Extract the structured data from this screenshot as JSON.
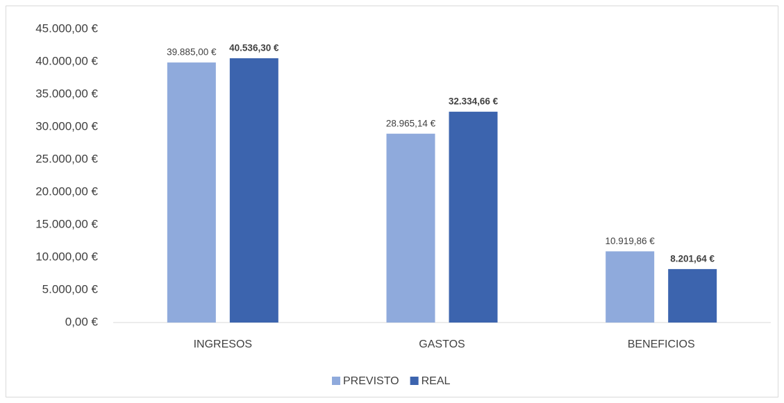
{
  "chart_data": {
    "type": "bar",
    "categories": [
      "INGRESOS",
      "GASTOS",
      "BENEFICIOS"
    ],
    "series": [
      {
        "name": "PREVISTO",
        "color": "#8faadc",
        "values": [
          39885,
          28965.14,
          10919.86
        ],
        "value_labels": [
          "39.885,00 €",
          "28.965,14 €",
          "10.919,86 €"
        ]
      },
      {
        "name": "REAL",
        "color": "#3c64ae",
        "values": [
          40536.3,
          32334.66,
          8201.64
        ],
        "value_labels": [
          "40.536,30 €",
          "32.334,66 €",
          "8.201,64 €"
        ]
      }
    ],
    "ylim": [
      0,
      45000
    ],
    "yticks": [
      {
        "value": 0,
        "label": "0,00 €"
      },
      {
        "value": 5000,
        "label": "5.000,00 €"
      },
      {
        "value": 10000,
        "label": "10.000,00 €"
      },
      {
        "value": 15000,
        "label": "15.000,00 €"
      },
      {
        "value": 20000,
        "label": "20.000,00 €"
      },
      {
        "value": 25000,
        "label": "25.000,00 €"
      },
      {
        "value": 30000,
        "label": "30.000,00 €"
      },
      {
        "value": 35000,
        "label": "35.000,00 €"
      },
      {
        "value": 40000,
        "label": "40.000,00 €"
      },
      {
        "value": 45000,
        "label": "45.000,00 €"
      }
    ],
    "grid": false,
    "legend": "bottom"
  }
}
